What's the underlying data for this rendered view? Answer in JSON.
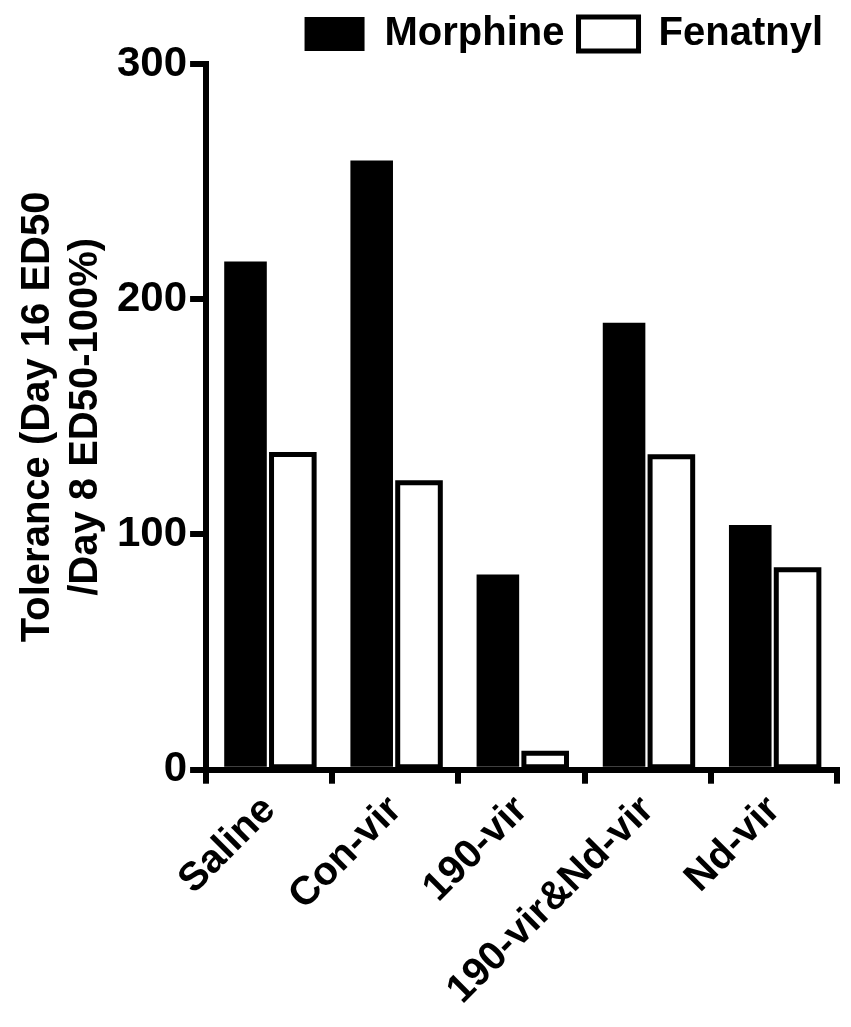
{
  "chart_data": {
    "type": "bar",
    "ylabel": "Tolerance (Day 16 ED50\n/Day 8 ED50-100%)",
    "categories": [
      "Saline",
      "Con-vir",
      "190-vir",
      "190-vir&Nd-vir",
      "Nd-vir"
    ],
    "series": [
      {
        "name": "Morphine",
        "color": "#000000",
        "values": [
          216,
          259,
          83,
          190,
          104
        ]
      },
      {
        "name": "Fenatnyl",
        "color": "#000000",
        "values": [
          134,
          122,
          7,
          133,
          85
        ]
      }
    ],
    "ylim": [
      0,
      300
    ],
    "yticks": [
      0,
      100,
      200,
      300
    ],
    "grid": false,
    "legend": "top right"
  }
}
